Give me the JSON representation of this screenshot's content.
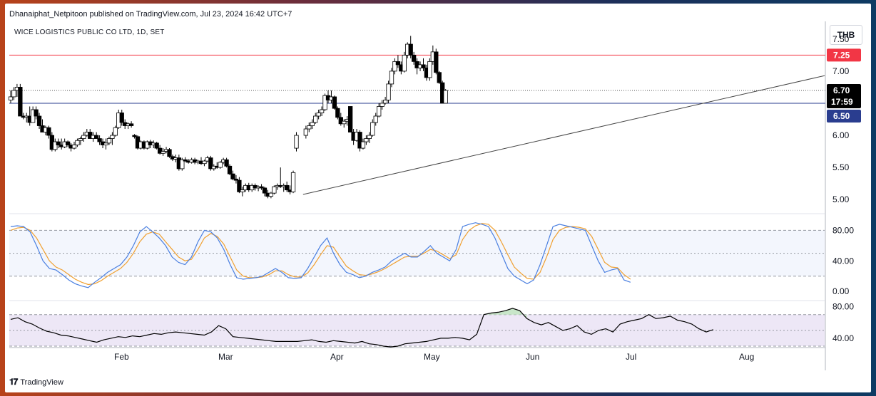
{
  "header": {
    "published": "Dhanaiphat_Netpitoon published on TradingView.com, Jul 23, 2024 16:42 UTC+7",
    "symbol": "WICE LOGISTICS PUBLIC CO LTD, 1D, SET",
    "currency": "THB"
  },
  "branding": {
    "logo_text": "TradingView"
  },
  "colors": {
    "bull_fill": "#ffffff",
    "bear_fill": "#000000",
    "wick": "#000000",
    "resistance": "#f23645",
    "support": "#2a3d8f",
    "stoch_k": "#4a7fe0",
    "stoch_d": "#f0a030",
    "rsi_line": "#000000",
    "rsi_zone": "#ede7f6",
    "rsi_highlight": "#2e7d32",
    "price_tag_current": "#000000"
  },
  "chart_data": [
    {
      "type": "candlestick",
      "title": "WICE LOGISTICS PUBLIC CO LTD, 1D, SET",
      "y_axis_ticks": [
        "7.50",
        "7.00",
        "6.50",
        "6.00",
        "5.50",
        "5.00"
      ],
      "ylim": [
        4.78,
        7.72
      ],
      "x_axis_months": [
        "Feb",
        "Mar",
        "Apr",
        "May",
        "Jun",
        "Jul",
        "Aug"
      ],
      "price_tags": {
        "resistance": "7.25",
        "last_price": "6.70",
        "countdown": "17:59",
        "support": "6.50"
      },
      "resistance_level": 7.25,
      "support_level": 6.5,
      "last_price": 6.7,
      "trendline": {
        "from": [
          "May 10",
          5.08
        ],
        "to": [
          "Aug 31",
          6.93
        ]
      },
      "candles": [
        [
          6.55,
          6.7,
          6.5,
          6.6
        ],
        [
          6.6,
          6.75,
          6.55,
          6.7
        ],
        [
          6.7,
          6.8,
          6.6,
          6.75
        ],
        [
          6.75,
          6.8,
          6.3,
          6.3
        ],
        [
          6.3,
          6.35,
          6.25,
          6.28
        ],
        [
          6.28,
          6.35,
          6.2,
          6.3
        ],
        [
          6.3,
          6.45,
          6.15,
          6.2
        ],
        [
          6.2,
          6.45,
          6.2,
          6.4
        ],
        [
          6.4,
          6.45,
          6.25,
          6.3
        ],
        [
          6.3,
          6.35,
          6.1,
          6.15
        ],
        [
          6.15,
          6.25,
          6.05,
          6.05
        ],
        [
          6.05,
          6.15,
          6.0,
          6.12
        ],
        [
          6.12,
          6.15,
          5.95,
          6.0
        ],
        [
          6.0,
          6.05,
          5.75,
          5.78
        ],
        [
          5.78,
          5.95,
          5.75,
          5.9
        ],
        [
          5.9,
          5.95,
          5.8,
          5.85
        ],
        [
          5.85,
          5.95,
          5.78,
          5.82
        ],
        [
          5.82,
          5.95,
          5.8,
          5.9
        ],
        [
          5.9,
          5.92,
          5.82,
          5.85
        ],
        [
          5.85,
          5.88,
          5.75,
          5.8
        ],
        [
          5.8,
          5.9,
          5.78,
          5.85
        ],
        [
          5.85,
          5.95,
          5.82,
          5.92
        ],
        [
          5.92,
          5.98,
          5.85,
          5.95
        ],
        [
          5.95,
          6.05,
          5.9,
          6.0
        ],
        [
          6.0,
          6.1,
          5.98,
          6.05
        ],
        [
          6.05,
          6.1,
          5.95,
          5.95
        ],
        [
          5.95,
          6.05,
          5.9,
          6.0
        ],
        [
          6.0,
          6.05,
          5.95,
          5.95
        ],
        [
          5.95,
          6.0,
          5.85,
          5.9
        ],
        [
          5.9,
          5.95,
          5.8,
          5.85
        ],
        [
          5.85,
          5.95,
          5.78,
          5.88
        ],
        [
          5.88,
          5.98,
          5.85,
          5.95
        ],
        [
          5.95,
          6.05,
          5.85,
          6.0
        ],
        [
          6.0,
          6.15,
          5.98,
          6.12
        ],
        [
          6.12,
          6.4,
          6.1,
          6.35
        ],
        [
          6.35,
          6.4,
          6.15,
          6.2
        ],
        [
          6.2,
          6.25,
          6.1,
          6.15
        ],
        [
          6.15,
          6.2,
          6.1,
          6.18
        ],
        [
          6.18,
          6.22,
          6.12,
          6.15
        ],
        [
          6.0,
          6.02,
          5.95,
          5.98
        ],
        [
          5.98,
          6.0,
          5.78,
          5.8
        ],
        [
          5.8,
          5.92,
          5.78,
          5.9
        ],
        [
          5.9,
          5.92,
          5.78,
          5.8
        ],
        [
          5.8,
          5.92,
          5.78,
          5.9
        ],
        [
          5.9,
          5.93,
          5.8,
          5.85
        ],
        [
          5.85,
          5.92,
          5.8,
          5.88
        ],
        [
          5.88,
          5.9,
          5.78,
          5.8
        ],
        [
          5.8,
          5.85,
          5.7,
          5.72
        ],
        [
          5.72,
          5.8,
          5.68,
          5.75
        ],
        [
          5.75,
          5.82,
          5.72,
          5.78
        ],
        [
          5.78,
          5.8,
          5.65,
          5.67
        ],
        [
          5.67,
          5.7,
          5.6,
          5.63
        ],
        [
          5.63,
          5.7,
          5.58,
          5.65
        ],
        [
          5.65,
          5.7,
          5.45,
          5.48
        ],
        [
          5.48,
          5.65,
          5.45,
          5.62
        ],
        [
          5.62,
          5.66,
          5.58,
          5.6
        ],
        [
          5.6,
          5.63,
          5.56,
          5.58
        ],
        [
          5.58,
          5.65,
          5.56,
          5.62
        ],
        [
          5.62,
          5.65,
          5.55,
          5.58
        ],
        [
          5.58,
          5.62,
          5.55,
          5.6
        ],
        [
          5.6,
          5.66,
          5.54,
          5.56
        ],
        [
          5.56,
          5.62,
          5.52,
          5.6
        ],
        [
          5.6,
          5.68,
          5.58,
          5.65
        ],
        [
          5.65,
          5.68,
          5.45,
          5.48
        ],
        [
          5.48,
          5.55,
          5.45,
          5.52
        ],
        [
          5.52,
          5.58,
          5.48,
          5.5
        ],
        [
          5.5,
          5.6,
          5.48,
          5.58
        ],
        [
          5.58,
          5.65,
          5.55,
          5.62
        ],
        [
          5.62,
          5.65,
          5.5,
          5.52
        ],
        [
          5.52,
          5.55,
          5.38,
          5.4
        ],
        [
          5.4,
          5.45,
          5.3,
          5.32
        ],
        [
          5.32,
          5.38,
          5.25,
          5.3
        ],
        [
          5.3,
          5.35,
          5.1,
          5.12
        ],
        [
          5.12,
          5.2,
          5.05,
          5.15
        ],
        [
          5.15,
          5.25,
          5.12,
          5.22
        ],
        [
          5.22,
          5.26,
          5.12,
          5.15
        ],
        [
          5.15,
          5.25,
          5.12,
          5.22
        ],
        [
          5.22,
          5.25,
          5.14,
          5.18
        ],
        [
          5.18,
          5.22,
          5.13,
          5.2
        ],
        [
          5.2,
          5.24,
          5.15,
          5.18
        ],
        [
          5.18,
          5.2,
          5.05,
          5.1
        ],
        [
          5.1,
          5.15,
          5.02,
          5.05
        ],
        [
          5.05,
          5.12,
          5.02,
          5.1
        ],
        [
          5.1,
          5.22,
          5.08,
          5.2
        ],
        [
          5.2,
          5.25,
          5.15,
          5.22
        ],
        [
          5.22,
          5.5,
          5.18,
          5.2
        ],
        [
          5.2,
          5.25,
          5.12,
          5.22
        ],
        [
          5.22,
          5.28,
          5.12,
          5.15
        ],
        [
          5.15,
          5.22,
          5.08,
          5.12
        ],
        [
          5.12,
          5.45,
          5.1,
          5.42
        ],
        [
          5.8,
          6.05,
          5.75,
          6.0
        ],
        [
          6.0,
          6.15,
          5.95,
          6.1
        ],
        [
          6.1,
          6.2,
          6.05,
          6.15
        ],
        [
          6.15,
          6.25,
          6.1,
          6.2
        ],
        [
          6.2,
          6.35,
          6.18,
          6.3
        ],
        [
          6.3,
          6.4,
          6.25,
          6.35
        ],
        [
          6.35,
          6.45,
          6.3,
          6.4
        ],
        [
          6.4,
          6.65,
          6.38,
          6.62
        ],
        [
          6.62,
          6.7,
          6.5,
          6.55
        ],
        [
          6.55,
          6.7,
          6.5,
          6.6
        ],
        [
          6.6,
          6.62,
          6.4,
          6.42
        ],
        [
          6.42,
          6.45,
          6.25,
          6.28
        ],
        [
          6.28,
          6.35,
          6.15,
          6.18
        ],
        [
          6.18,
          6.25,
          6.12,
          6.22
        ],
        [
          6.22,
          6.3,
          6.15,
          6.25
        ],
        [
          6.45,
          6.45,
          6.05,
          6.05
        ],
        [
          6.05,
          6.1,
          5.85,
          5.92
        ],
        [
          5.92,
          6.1,
          5.9,
          6.05
        ],
        [
          6.05,
          6.08,
          5.75,
          5.8
        ],
        [
          5.8,
          5.95,
          5.78,
          5.9
        ],
        [
          5.9,
          6.0,
          5.85,
          5.95
        ],
        [
          5.95,
          6.05,
          5.88,
          6.0
        ],
        [
          6.0,
          6.25,
          5.98,
          6.2
        ],
        [
          6.2,
          6.35,
          6.15,
          6.3
        ],
        [
          6.3,
          6.5,
          6.28,
          6.45
        ],
        [
          6.45,
          6.55,
          6.4,
          6.5
        ],
        [
          6.5,
          6.6,
          6.48,
          6.55
        ],
        [
          6.55,
          6.85,
          6.5,
          6.8
        ],
        [
          6.8,
          7.05,
          6.75,
          7.0
        ],
        [
          7.0,
          7.2,
          6.95,
          7.15
        ],
        [
          7.15,
          7.25,
          7.05,
          7.1
        ],
        [
          7.1,
          7.15,
          6.95,
          7.0
        ],
        [
          7.0,
          7.3,
          6.98,
          7.25
        ],
        [
          7.25,
          7.45,
          7.2,
          7.42
        ],
        [
          7.42,
          7.55,
          7.2,
          7.25
        ],
        [
          7.25,
          7.3,
          7.1,
          7.15
        ],
        [
          7.15,
          7.2,
          6.95,
          7.05
        ],
        [
          7.05,
          7.15,
          7.0,
          7.1
        ],
        [
          7.1,
          7.2,
          7.0,
          7.05
        ],
        [
          7.05,
          7.1,
          6.85,
          6.9
        ],
        [
          6.9,
          7.2,
          6.85,
          7.15
        ],
        [
          7.15,
          7.4,
          7.1,
          7.3
        ],
        [
          7.3,
          7.35,
          6.95,
          6.98
        ],
        [
          6.98,
          7.0,
          6.8,
          6.82
        ],
        [
          6.82,
          6.85,
          6.5,
          6.5
        ],
        [
          6.5,
          6.72,
          6.5,
          6.7
        ]
      ]
    },
    {
      "type": "line",
      "title": "Stochastic",
      "y_axis_ticks": [
        "80.00",
        "40.00",
        "0.00"
      ],
      "ylim": [
        -12,
        100
      ],
      "bands": [
        80,
        50,
        20
      ],
      "series": [
        {
          "values": [
            85,
            86,
            85,
            78,
            60,
            40,
            30,
            28,
            22,
            15,
            10,
            7,
            5,
            12,
            18,
            25,
            30,
            35,
            45,
            60,
            78,
            85,
            78,
            70,
            60,
            45,
            38,
            35,
            45,
            65,
            80,
            78,
            70,
            55,
            35,
            18,
            16,
            17,
            18,
            20,
            25,
            30,
            25,
            18,
            17,
            18,
            30,
            45,
            60,
            70,
            50,
            35,
            25,
            22,
            18,
            20,
            25,
            28,
            32,
            40,
            45,
            50,
            45,
            45,
            52,
            60,
            50,
            45,
            40,
            55,
            85,
            88,
            90,
            88,
            85,
            70,
            50,
            30,
            20,
            15,
            10,
            15,
            35,
            60,
            85,
            88,
            86,
            84,
            82,
            80,
            60,
            40,
            25,
            28,
            30,
            15,
            12
          ]
        },
        {
          "values": [
            80,
            83,
            84,
            80,
            70,
            55,
            40,
            32,
            28,
            22,
            16,
            12,
            9,
            10,
            14,
            20,
            25,
            30,
            38,
            50,
            65,
            75,
            78,
            75,
            65,
            55,
            45,
            40,
            42,
            55,
            70,
            76,
            72,
            62,
            45,
            28,
            20,
            18,
            18,
            19,
            22,
            27,
            27,
            22,
            19,
            19,
            24,
            35,
            48,
            60,
            58,
            45,
            33,
            27,
            22,
            21,
            23,
            26,
            30,
            35,
            40,
            45,
            46,
            46,
            50,
            55,
            53,
            48,
            43,
            48,
            68,
            80,
            86,
            89,
            88,
            80,
            65,
            48,
            32,
            24,
            17,
            16,
            25,
            45,
            68,
            80,
            84,
            85,
            84,
            82,
            72,
            55,
            38,
            32,
            31,
            22,
            16
          ]
        }
      ]
    },
    {
      "type": "line",
      "title": "RSI",
      "y_axis_ticks": [
        "80.00",
        "40.00"
      ],
      "ylim": [
        30,
        86
      ],
      "bands": [
        70,
        50,
        30
      ],
      "series": [
        {
          "values": [
            64,
            66,
            61,
            58,
            53,
            49,
            47,
            44,
            43,
            41,
            39,
            37,
            35,
            38,
            40,
            42,
            41,
            43,
            42,
            44,
            46,
            45,
            47,
            48,
            47,
            46,
            45,
            44,
            48,
            56,
            52,
            42,
            41,
            40,
            39,
            38,
            37,
            36,
            36,
            36,
            36,
            37,
            38,
            36,
            35,
            37,
            36,
            35,
            34,
            36,
            33,
            32,
            30,
            29,
            30,
            33,
            34,
            35,
            36,
            38,
            40,
            40,
            41,
            40,
            38,
            45,
            70,
            72,
            73,
            75,
            78,
            75,
            65,
            60,
            57,
            60,
            55,
            50,
            52,
            56,
            48,
            45,
            50,
            52,
            48,
            58,
            61,
            63,
            65,
            70,
            65,
            66,
            68,
            63,
            61,
            58,
            52,
            48,
            51
          ]
        }
      ]
    }
  ]
}
